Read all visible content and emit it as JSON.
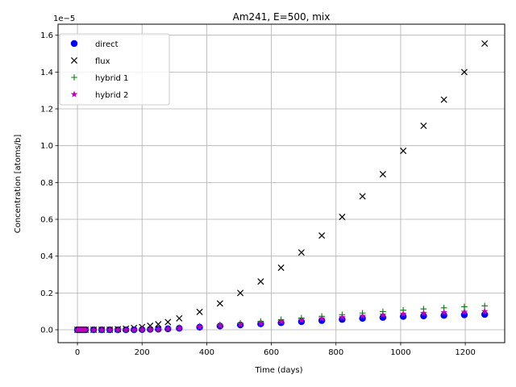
{
  "chart_data": {
    "type": "scatter",
    "title": "Am241, E=500, mix",
    "xlabel": "Time (days)",
    "ylabel": "Concentration [atoms/b]",
    "y_offset_label": "1e−5",
    "y_scale_factor": 1e-05,
    "xlim": [
      -60,
      1322
    ],
    "ylim": [
      -0.07,
      1.66
    ],
    "x_ticks": [
      0,
      200,
      400,
      600,
      800,
      1000,
      1200
    ],
    "y_ticks": [
      0.0,
      0.2,
      0.4,
      0.6,
      0.8,
      1.0,
      1.2,
      1.4,
      1.6
    ],
    "y_tick_labels": [
      "0.0",
      "0.2",
      "0.4",
      "0.6",
      "0.8",
      "1.0",
      "1.2",
      "1.4",
      "1.6"
    ],
    "grid": true,
    "legend_position": "top-left",
    "x": [
      0,
      5,
      10,
      15,
      20,
      25,
      50,
      75,
      100,
      125,
      150,
      175,
      200,
      225,
      250,
      280,
      315,
      378,
      441,
      504,
      567,
      630,
      693,
      756,
      819,
      882,
      945,
      1008,
      1071,
      1134,
      1197,
      1260
    ],
    "series": [
      {
        "name": "direct",
        "marker": "circle",
        "color": "#0000ff",
        "values": [
          0,
          0,
          0,
          0,
          0,
          0,
          0,
          0,
          0,
          0,
          0,
          0,
          0.001,
          0.002,
          0.003,
          0.005,
          0.008,
          0.014,
          0.02,
          0.026,
          0.032,
          0.038,
          0.044,
          0.05,
          0.056,
          0.062,
          0.067,
          0.072,
          0.075,
          0.078,
          0.081,
          0.083
        ]
      },
      {
        "name": "flux",
        "marker": "x",
        "color": "#000000",
        "values": [
          0,
          0,
          0,
          0,
          0,
          0,
          0,
          0,
          0,
          0.003,
          0.006,
          0.01,
          0.015,
          0.022,
          0.03,
          0.042,
          0.062,
          0.097,
          0.143,
          0.2,
          0.262,
          0.337,
          0.42,
          0.512,
          0.613,
          0.725,
          0.845,
          0.972,
          1.108,
          1.25,
          1.4,
          1.555
        ]
      },
      {
        "name": "hybrid 1",
        "marker": "plus",
        "color": "#008000",
        "values": [
          0,
          0,
          0,
          0,
          0,
          0,
          0,
          0,
          0,
          0,
          0,
          0,
          0.002,
          0.004,
          0.006,
          0.009,
          0.012,
          0.02,
          0.028,
          0.036,
          0.046,
          0.055,
          0.064,
          0.073,
          0.082,
          0.091,
          0.099,
          0.106,
          0.113,
          0.119,
          0.125,
          0.13
        ]
      },
      {
        "name": "hybrid 2",
        "marker": "star",
        "color": "#bf00bf",
        "values": [
          0,
          0,
          0,
          0,
          0,
          0,
          0,
          0,
          0,
          0,
          0,
          0,
          0.001,
          0.002,
          0.003,
          0.005,
          0.008,
          0.015,
          0.022,
          0.029,
          0.037,
          0.045,
          0.053,
          0.061,
          0.068,
          0.075,
          0.081,
          0.086,
          0.09,
          0.094,
          0.097,
          0.1
        ]
      }
    ]
  }
}
